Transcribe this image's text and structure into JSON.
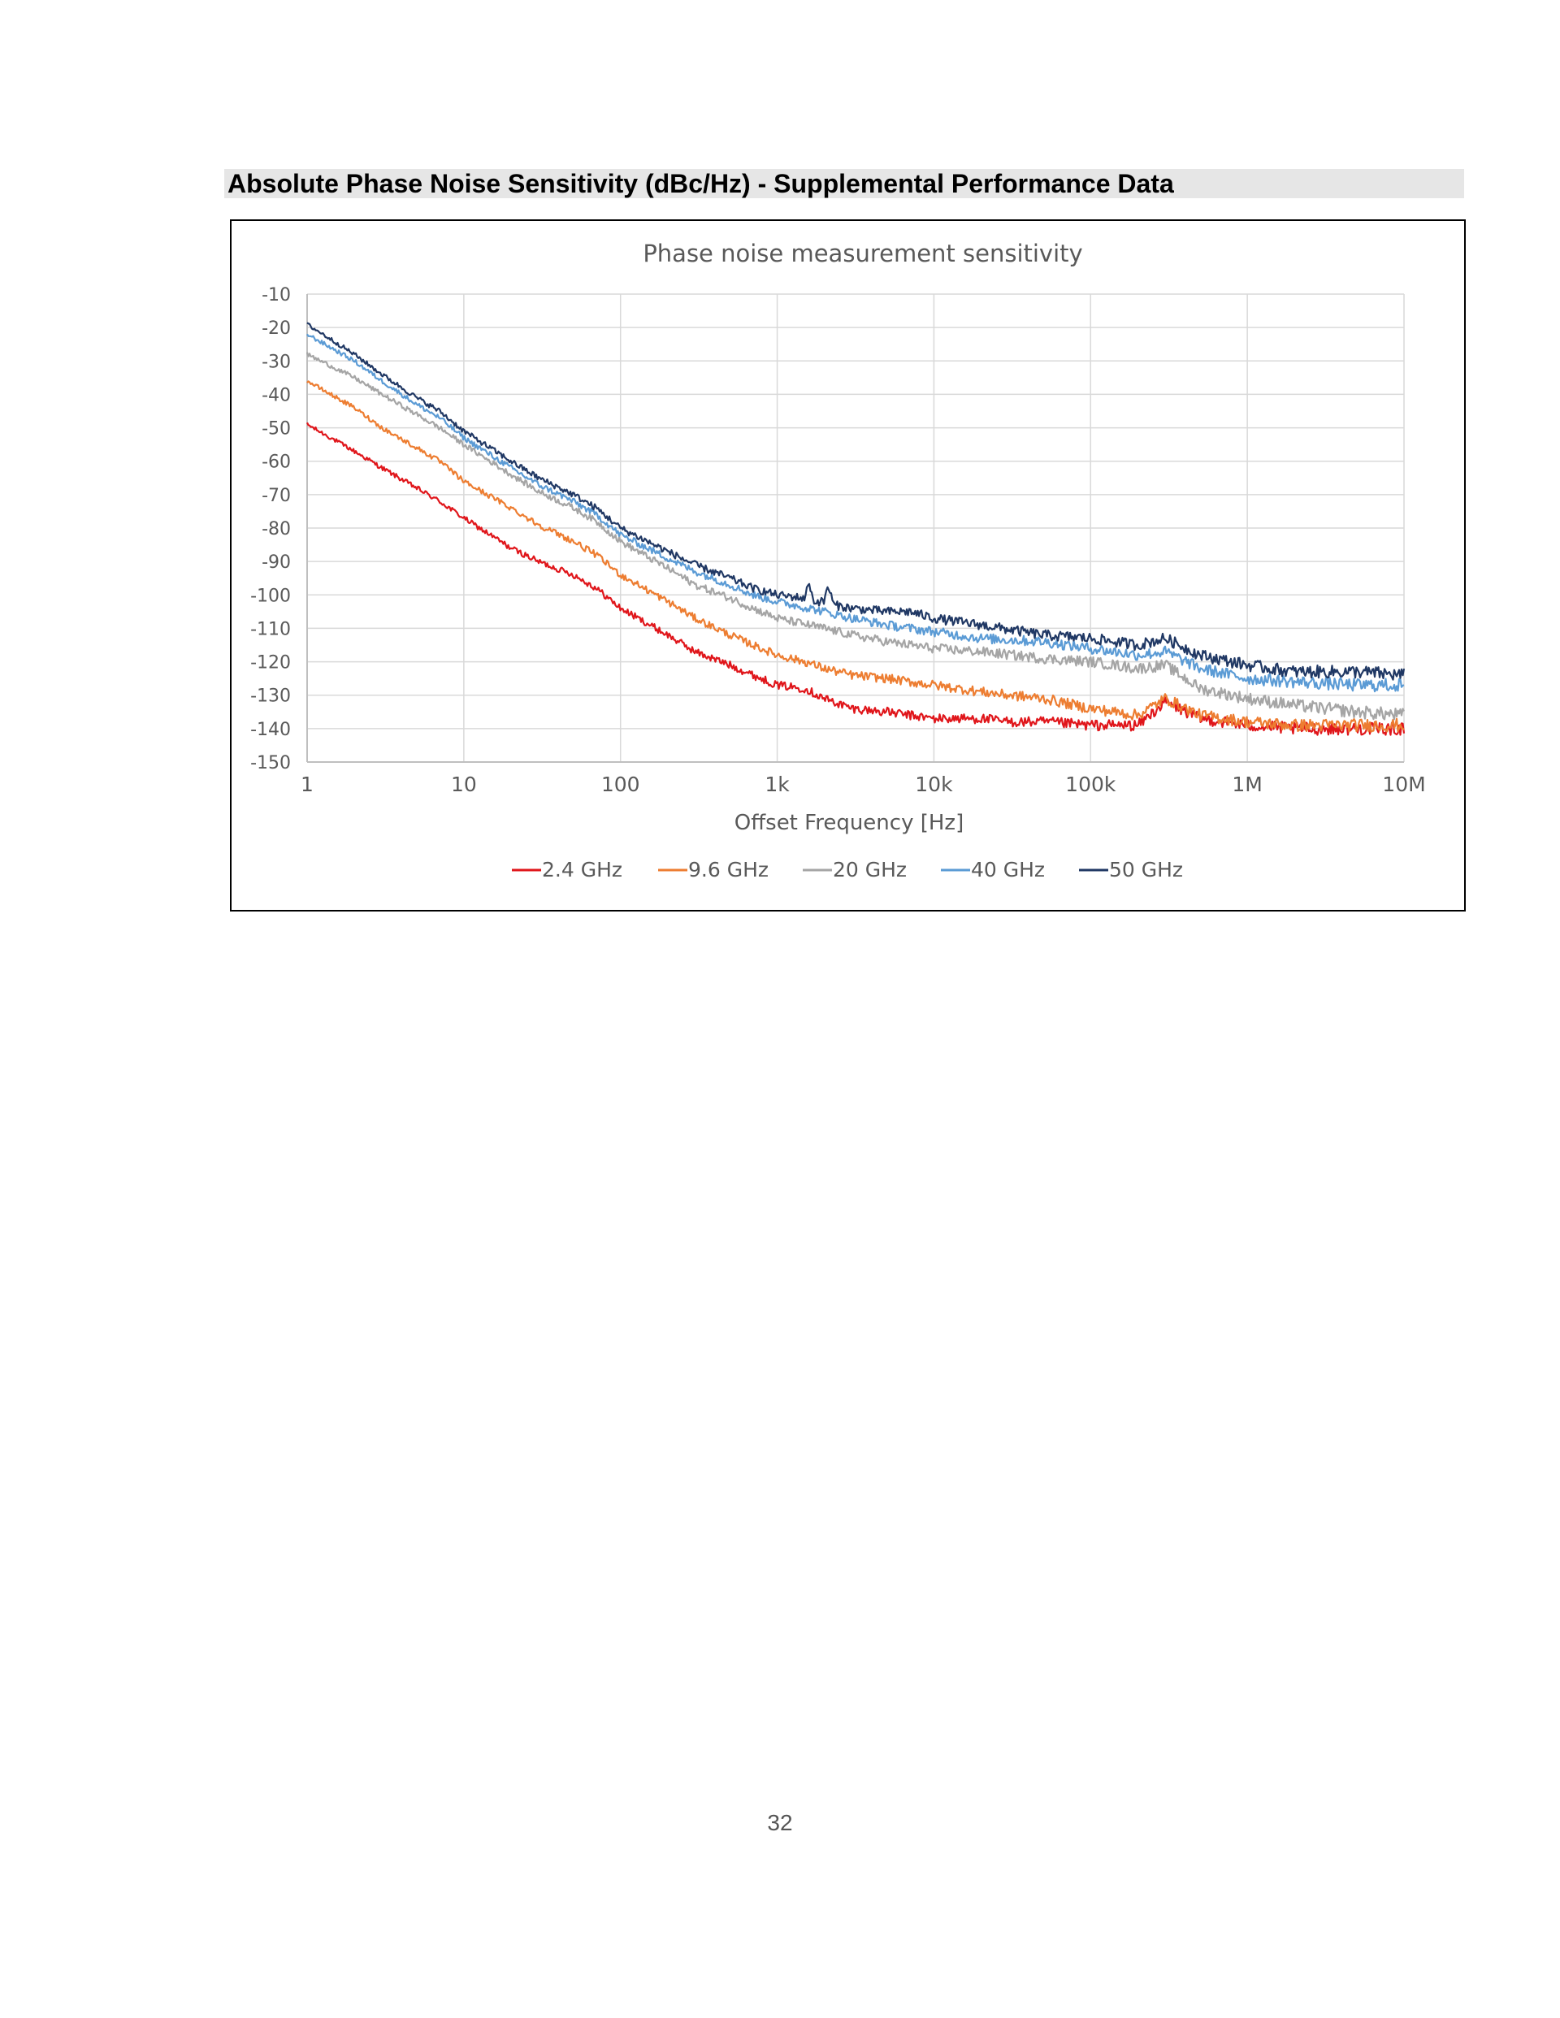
{
  "section_heading": "Absolute Phase Noise Sensitivity (dBc/Hz) - Supplemental Performance Data",
  "page_number": "32",
  "chart_data": {
    "type": "line",
    "title": "Phase noise measurement sensitivity",
    "xlabel": "Offset Frequency [Hz]",
    "ylabel": "",
    "x_scale": "log",
    "xlim": [
      1,
      10000000
    ],
    "ylim": [
      -150,
      -10
    ],
    "x_ticks": [
      {
        "value": 1,
        "label": "1"
      },
      {
        "value": 10,
        "label": "10"
      },
      {
        "value": 100,
        "label": "100"
      },
      {
        "value": 1000,
        "label": "1k"
      },
      {
        "value": 10000,
        "label": "10k"
      },
      {
        "value": 100000,
        "label": "100k"
      },
      {
        "value": 1000000,
        "label": "1M"
      },
      {
        "value": 10000000,
        "label": "10M"
      }
    ],
    "y_ticks": [
      -10,
      -20,
      -30,
      -40,
      -50,
      -60,
      -70,
      -80,
      -90,
      -100,
      -110,
      -120,
      -130,
      -140,
      -150
    ],
    "grid": true,
    "legend_position": "bottom",
    "series": [
      {
        "name": "2.4 GHz",
        "color": "#e0161b",
        "x": [
          1,
          2,
          3,
          5,
          7,
          10,
          20,
          30,
          50,
          70,
          100,
          200,
          300,
          500,
          700,
          1000,
          1500,
          2000,
          3000,
          5000,
          7000,
          10000,
          20000,
          30000,
          50000,
          100000,
          200000,
          300000,
          500000,
          1000000,
          2000000,
          5000000,
          10000000
        ],
        "y": [
          -49,
          -57,
          -62,
          -68,
          -72,
          -77,
          -86,
          -90,
          -94,
          -98,
          -104,
          -112,
          -117,
          -121,
          -124,
          -127,
          -128,
          -131,
          -134,
          -135,
          -136,
          -137,
          -137,
          -138,
          -138,
          -139,
          -139,
          -132,
          -137,
          -139,
          -140,
          -140,
          -140
        ]
      },
      {
        "name": "9.6 GHz",
        "color": "#ed7d31",
        "x": [
          1,
          2,
          3,
          5,
          7,
          10,
          20,
          30,
          50,
          70,
          100,
          200,
          300,
          500,
          700,
          1000,
          1500,
          2000,
          3000,
          5000,
          7000,
          10000,
          20000,
          30000,
          50000,
          100000,
          200000,
          300000,
          500000,
          1000000,
          2000000,
          5000000,
          10000000
        ],
        "y": [
          -36,
          -44,
          -50,
          -56,
          -60,
          -66,
          -74,
          -79,
          -84,
          -88,
          -94,
          -102,
          -107,
          -112,
          -115,
          -118,
          -120,
          -122,
          -124,
          -125,
          -126,
          -127,
          -129,
          -130,
          -131,
          -134,
          -136,
          -131,
          -136,
          -138,
          -139,
          -139,
          -139
        ]
      },
      {
        "name": "20 GHz",
        "color": "#a5a5a5",
        "x": [
          1,
          2,
          3,
          5,
          7,
          10,
          20,
          30,
          50,
          70,
          100,
          200,
          300,
          500,
          700,
          1000,
          2000,
          3000,
          5000,
          10000,
          20000,
          50000,
          100000,
          200000,
          300000,
          500000,
          1000000,
          2000000,
          5000000,
          10000000
        ],
        "y": [
          -28,
          -35,
          -40,
          -46,
          -50,
          -55,
          -64,
          -69,
          -74,
          -78,
          -84,
          -92,
          -97,
          -101,
          -104,
          -107,
          -110,
          -112,
          -114,
          -116,
          -117,
          -119,
          -120,
          -122,
          -121,
          -128,
          -131,
          -133,
          -135,
          -136
        ]
      },
      {
        "name": "40 GHz",
        "color": "#5b9bd5",
        "x": [
          1,
          2,
          3,
          5,
          7,
          10,
          20,
          30,
          50,
          70,
          100,
          200,
          300,
          500,
          700,
          1000,
          2000,
          3000,
          5000,
          10000,
          20000,
          50000,
          100000,
          200000,
          300000,
          500000,
          1000000,
          2000000,
          5000000,
          10000000
        ],
        "y": [
          -22,
          -30,
          -36,
          -43,
          -47,
          -53,
          -62,
          -67,
          -72,
          -76,
          -82,
          -89,
          -93,
          -97,
          -100,
          -102,
          -105,
          -107,
          -109,
          -111,
          -113,
          -114,
          -116,
          -118,
          -117,
          -122,
          -125,
          -126,
          -127,
          -127
        ]
      },
      {
        "name": "50 GHz",
        "color": "#203864",
        "x": [
          1,
          2,
          3,
          5,
          7,
          10,
          20,
          30,
          50,
          70,
          100,
          200,
          300,
          500,
          700,
          1000,
          1500,
          1600,
          1700,
          2000,
          2100,
          2300,
          3000,
          5000,
          7000,
          10000,
          20000,
          50000,
          100000,
          200000,
          300000,
          500000,
          1000000,
          2000000,
          5000000,
          10000000
        ],
        "y": [
          -19,
          -28,
          -34,
          -41,
          -45,
          -51,
          -60,
          -65,
          -70,
          -74,
          -80,
          -87,
          -91,
          -95,
          -98,
          -100,
          -101,
          -96,
          -102,
          -102,
          -97,
          -103,
          -104,
          -105,
          -105,
          -107,
          -109,
          -112,
          -113,
          -115,
          -113,
          -118,
          -121,
          -123,
          -123,
          -124
        ]
      }
    ]
  }
}
